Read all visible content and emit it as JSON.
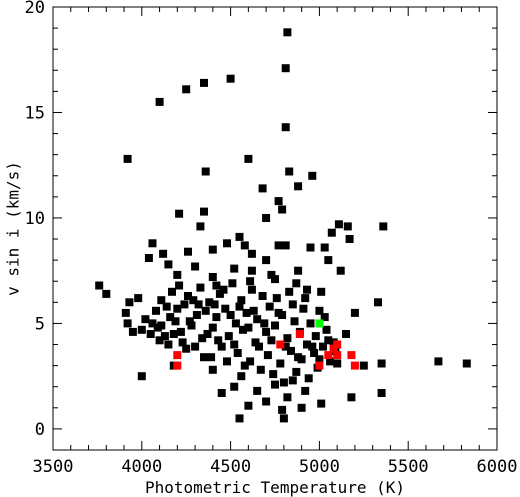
{
  "chart_data": {
    "type": "scatter",
    "title": "",
    "xlabel": "Photometric Temperature (K)",
    "ylabel": "v sin i (km/s)",
    "xlim": [
      3500,
      6000
    ],
    "ylim": [
      -1,
      20
    ],
    "x_ticks": [
      "3500",
      "4000",
      "4500",
      "5000",
      "5500",
      "6000"
    ],
    "y_ticks": [
      "0",
      "5",
      "10",
      "15",
      "20"
    ],
    "grid": false,
    "legend": "none",
    "series": [
      {
        "color": "#000000",
        "marker": "square",
        "points": [
          [
            4820,
            18.8
          ],
          [
            4810,
            17.1
          ],
          [
            4500,
            16.6
          ],
          [
            4350,
            16.4
          ],
          [
            4250,
            16.1
          ],
          [
            4100,
            15.5
          ],
          [
            4810,
            14.3
          ],
          [
            3920,
            12.8
          ],
          [
            4600,
            12.8
          ],
          [
            4360,
            12.2
          ],
          [
            4830,
            12.2
          ],
          [
            4960,
            12.0
          ],
          [
            4680,
            11.4
          ],
          [
            4880,
            11.5
          ],
          [
            4770,
            10.8
          ],
          [
            4790,
            10.4
          ],
          [
            4210,
            10.2
          ],
          [
            4350,
            10.3
          ],
          [
            4700,
            10.0
          ],
          [
            5110,
            9.7
          ],
          [
            5160,
            9.6
          ],
          [
            5360,
            9.6
          ],
          [
            4330,
            9.6
          ],
          [
            5070,
            9.3
          ],
          [
            4550,
            9.1
          ],
          [
            5170,
            9.0
          ],
          [
            4480,
            8.8
          ],
          [
            4060,
            8.8
          ],
          [
            4580,
            8.7
          ],
          [
            4770,
            8.7
          ],
          [
            4810,
            8.7
          ],
          [
            4950,
            8.6
          ],
          [
            4400,
            8.5
          ],
          [
            4260,
            8.4
          ],
          [
            5030,
            8.6
          ],
          [
            4620,
            8.3
          ],
          [
            4120,
            8.3
          ],
          [
            4040,
            8.1
          ],
          [
            4700,
            8.0
          ],
          [
            5050,
            8.0
          ],
          [
            4150,
            7.8
          ],
          [
            4300,
            7.7
          ],
          [
            4520,
            7.6
          ],
          [
            4620,
            7.5
          ],
          [
            4880,
            7.5
          ],
          [
            5120,
            7.5
          ],
          [
            4200,
            7.3
          ],
          [
            4400,
            7.2
          ],
          [
            4750,
            7.1
          ],
          [
            3760,
            6.8
          ],
          [
            3800,
            6.4
          ],
          [
            5330,
            6.0
          ],
          [
            5010,
            6.5
          ],
          [
            5200,
            5.5
          ],
          [
            5150,
            4.5
          ],
          [
            5050,
            4.2
          ],
          [
            5350,
            3.1
          ],
          [
            5350,
            1.7
          ],
          [
            5670,
            3.2
          ],
          [
            5830,
            3.1
          ],
          [
            4000,
            2.5
          ],
          [
            4180,
            3.0
          ],
          [
            4550,
            0.5
          ],
          [
            4800,
            0.5
          ],
          [
            4790,
            0.9
          ],
          [
            4900,
            1.0
          ],
          [
            5010,
            1.2
          ],
          [
            4820,
            1.5
          ],
          [
            4700,
            1.3
          ],
          [
            4600,
            1.1
          ],
          [
            4450,
            1.7
          ],
          [
            4520,
            2.0
          ],
          [
            4650,
            1.8
          ],
          [
            4920,
            1.8
          ],
          [
            4750,
            2.1
          ],
          [
            4850,
            2.3
          ],
          [
            5180,
            1.5
          ],
          [
            5250,
            3.0
          ],
          [
            5000,
            3.3
          ],
          [
            5100,
            3.1
          ],
          [
            4400,
            2.8
          ],
          [
            4350,
            3.4
          ],
          [
            4250,
            3.8
          ],
          [
            4150,
            4.0
          ],
          [
            4100,
            4.2
          ],
          [
            4050,
            4.5
          ],
          [
            4000,
            4.7
          ],
          [
            3950,
            4.6
          ],
          [
            3920,
            5.0
          ],
          [
            3910,
            5.5
          ],
          [
            3930,
            6.0
          ],
          [
            3980,
            6.2
          ],
          [
            4020,
            5.2
          ],
          [
            4080,
            5.6
          ],
          [
            4110,
            6.1
          ],
          [
            4140,
            5.8
          ],
          [
            4170,
            6.5
          ],
          [
            4190,
            5.1
          ],
          [
            4220,
            4.6
          ],
          [
            4240,
            5.9
          ],
          [
            4260,
            6.3
          ],
          [
            4280,
            4.9
          ],
          [
            4310,
            5.4
          ],
          [
            4330,
            6.7
          ],
          [
            4340,
            4.3
          ],
          [
            4360,
            5.6
          ],
          [
            4380,
            6.0
          ],
          [
            4400,
            4.8
          ],
          [
            4420,
            5.3
          ],
          [
            4440,
            6.4
          ],
          [
            4450,
            3.9
          ],
          [
            4470,
            5.7
          ],
          [
            4490,
            4.4
          ],
          [
            4510,
            6.9
          ],
          [
            4530,
            5.0
          ],
          [
            4540,
            3.6
          ],
          [
            4560,
            6.1
          ],
          [
            4570,
            4.7
          ],
          [
            4590,
            5.5
          ],
          [
            4610,
            3.2
          ],
          [
            4620,
            6.6
          ],
          [
            4640,
            4.1
          ],
          [
            4650,
            5.2
          ],
          [
            4670,
            2.8
          ],
          [
            4680,
            6.3
          ],
          [
            4700,
            4.6
          ],
          [
            4710,
            3.5
          ],
          [
            4720,
            5.8
          ],
          [
            4740,
            2.6
          ],
          [
            4750,
            4.9
          ],
          [
            4760,
            6.2
          ],
          [
            4780,
            3.1
          ],
          [
            4790,
            5.4
          ],
          [
            4800,
            2.2
          ],
          [
            4820,
            4.3
          ],
          [
            4830,
            6.5
          ],
          [
            4840,
            3.7
          ],
          [
            4860,
            5.1
          ],
          [
            4870,
            2.7
          ],
          [
            4890,
            4.6
          ],
          [
            4900,
            3.3
          ],
          [
            4910,
            5.7
          ],
          [
            4930,
            4.0
          ],
          [
            4940,
            2.4
          ],
          [
            4950,
            5.0
          ],
          [
            4970,
            3.6
          ],
          [
            4980,
            4.4
          ],
          [
            4990,
            2.9
          ],
          [
            5000,
            5.6
          ],
          [
            5020,
            3.9
          ],
          [
            5040,
            4.7
          ],
          [
            5060,
            3.2
          ],
          [
            5080,
            4.1
          ],
          [
            5090,
            3.7
          ],
          [
            4060,
            5.0
          ],
          [
            4090,
            4.8
          ],
          [
            4130,
            4.4
          ],
          [
            4160,
            5.3
          ],
          [
            4200,
            5.7
          ],
          [
            4230,
            4.1
          ],
          [
            4270,
            5.1
          ],
          [
            4300,
            3.9
          ],
          [
            4320,
            5.9
          ],
          [
            4370,
            4.5
          ],
          [
            4390,
            3.4
          ],
          [
            4410,
            5.9
          ],
          [
            4430,
            4.2
          ],
          [
            4460,
            6.6
          ],
          [
            4480,
            3.2
          ],
          [
            4500,
            5.4
          ],
          [
            4520,
            4.0
          ],
          [
            4550,
            5.8
          ],
          [
            4580,
            3.0
          ],
          [
            4600,
            4.8
          ],
          [
            4630,
            5.6
          ],
          [
            4660,
            3.9
          ],
          [
            4690,
            5.0
          ],
          [
            4730,
            4.2
          ],
          [
            4770,
            5.5
          ],
          [
            4810,
            3.9
          ],
          [
            4850,
            5.9
          ],
          [
            4880,
            3.4
          ],
          [
            4920,
            6.2
          ],
          [
            4960,
            3.9
          ],
          [
            5030,
            5.3
          ],
          [
            4110,
            4.9
          ],
          [
            4180,
            4.5
          ],
          [
            4210,
            6.8
          ],
          [
            4290,
            6.1
          ],
          [
            4420,
            6.8
          ],
          [
            4560,
            2.5
          ],
          [
            4610,
            7.0
          ],
          [
            4730,
            7.3
          ],
          [
            4870,
            6.9
          ],
          [
            4930,
            6.6
          ]
        ]
      },
      {
        "color": "#ff0000",
        "marker": "square",
        "points": [
          [
            4200,
            3.5
          ],
          [
            4200,
            3.0
          ],
          [
            4780,
            4.0
          ],
          [
            4890,
            4.5
          ],
          [
            5000,
            3.0
          ],
          [
            5050,
            3.5
          ],
          [
            5080,
            3.8
          ],
          [
            5100,
            4.0
          ],
          [
            5100,
            3.5
          ],
          [
            5180,
            3.5
          ],
          [
            5200,
            3.0
          ]
        ]
      },
      {
        "color": "#00ff00",
        "marker": "square",
        "points": [
          [
            5000,
            5.0
          ]
        ]
      }
    ]
  }
}
